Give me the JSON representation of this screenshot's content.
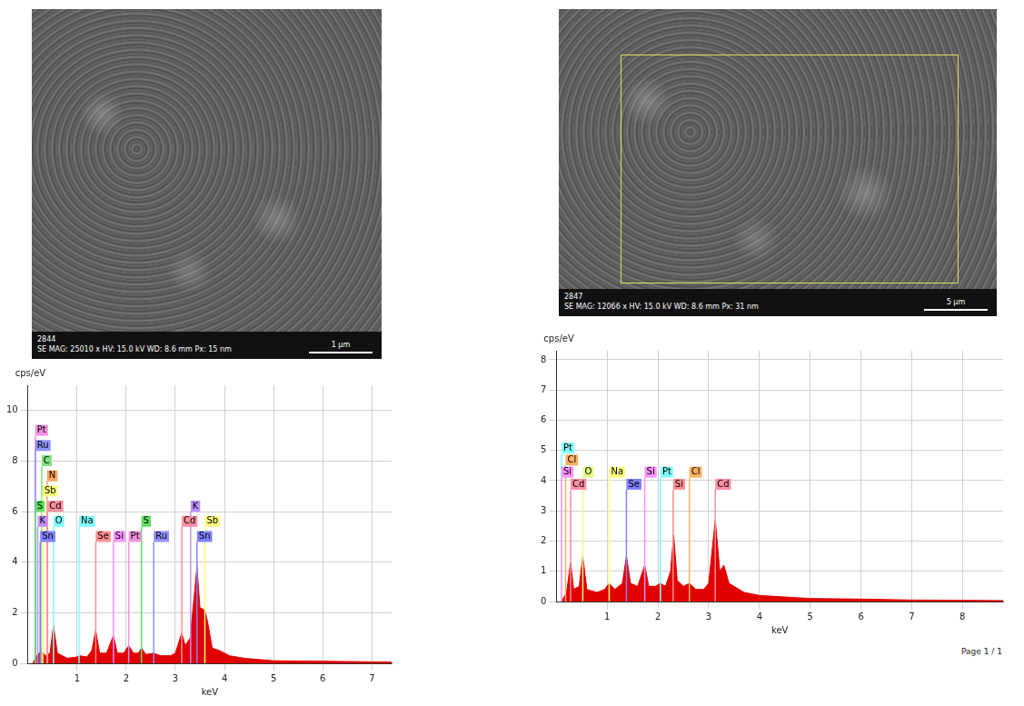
{
  "images": [
    {
      "code": "2844",
      "info": "SE MAG: 25010 x HV: 15.0 kV WD: 8.6 mm Px: 15 nm",
      "scale": "1 µm"
    },
    {
      "code": "2847",
      "info": "SE MAG: 12066 x HV: 15.0 kV WD: 8.6 mm Px: 31 nm",
      "scale": "5 µm"
    }
  ],
  "chart_data": [
    {
      "type": "area",
      "color": "#e00000",
      "ylabel": "cps/eV",
      "xlabel": "keV",
      "grid": true,
      "xlim": [
        0,
        7.4
      ],
      "xticks": [
        1,
        2,
        3,
        4,
        5,
        6,
        7
      ],
      "ylim": [
        0,
        11
      ],
      "yticks": [
        0,
        2,
        4,
        6,
        8,
        10
      ],
      "x": [
        0.1,
        0.18,
        0.28,
        0.35,
        0.45,
        0.52,
        0.6,
        0.8,
        1.0,
        1.05,
        1.2,
        1.3,
        1.38,
        1.46,
        1.6,
        1.74,
        1.82,
        1.95,
        2.05,
        2.15,
        2.25,
        2.31,
        2.4,
        2.56,
        2.7,
        2.9,
        3.0,
        3.13,
        3.2,
        3.3,
        3.4,
        3.44,
        3.5,
        3.6,
        3.66,
        3.75,
        3.9,
        4.1,
        4.4,
        5.0,
        6.0,
        7.4
      ],
      "values": [
        0,
        0.3,
        0.5,
        0.3,
        0.4,
        1.5,
        0.4,
        0.2,
        0.25,
        0.3,
        0.25,
        0.5,
        1.3,
        0.4,
        0.4,
        1.1,
        0.4,
        0.4,
        0.7,
        0.4,
        0.4,
        0.6,
        0.35,
        0.4,
        0.3,
        0.3,
        0.4,
        1.2,
        0.7,
        1.0,
        3.0,
        3.8,
        2.2,
        2.1,
        1.6,
        0.6,
        0.5,
        0.3,
        0.2,
        0.1,
        0.08,
        0.05
      ],
      "element_lines": [
        {
          "label": "Pt",
          "x": 0.15,
          "y": 9.0,
          "color": "#f090e0"
        },
        {
          "label": "Ru",
          "x": 0.15,
          "y": 8.4,
          "color": "#9090ff"
        },
        {
          "label": "C",
          "x": 0.28,
          "y": 7.8,
          "color": "#80e080"
        },
        {
          "label": "N",
          "x": 0.39,
          "y": 7.2,
          "color": "#ffa060"
        },
        {
          "label": "Sb",
          "x": 0.3,
          "y": 6.6,
          "color": "#ffff80"
        },
        {
          "label": "S",
          "x": 0.15,
          "y": 6.0,
          "color": "#60e060"
        },
        {
          "label": "Cd",
          "x": 0.4,
          "y": 6.0,
          "color": "#ff8fa0"
        },
        {
          "label": "K",
          "x": 0.2,
          "y": 5.4,
          "color": "#c090ff"
        },
        {
          "label": "O",
          "x": 0.52,
          "y": 5.4,
          "color": "#80ffff"
        },
        {
          "label": "Sn",
          "x": 0.25,
          "y": 4.8,
          "color": "#8080ff"
        },
        {
          "label": "Na",
          "x": 1.04,
          "y": 5.4,
          "color": "#80ffff"
        },
        {
          "label": "Se",
          "x": 1.38,
          "y": 4.8,
          "color": "#ff8f8f"
        },
        {
          "label": "Si",
          "x": 1.74,
          "y": 4.8,
          "color": "#ff90ff"
        },
        {
          "label": "Pt",
          "x": 2.05,
          "y": 4.8,
          "color": "#f090e0"
        },
        {
          "label": "S",
          "x": 2.31,
          "y": 5.4,
          "color": "#60e060"
        },
        {
          "label": "Ru",
          "x": 2.56,
          "y": 4.8,
          "color": "#9090ff"
        },
        {
          "label": "K",
          "x": 3.31,
          "y": 6.0,
          "color": "#c090ff"
        },
        {
          "label": "Cd",
          "x": 3.13,
          "y": 5.4,
          "color": "#ff8fa0"
        },
        {
          "label": "Sb",
          "x": 3.6,
          "y": 5.4,
          "color": "#ffff80"
        },
        {
          "label": "Sn",
          "x": 3.44,
          "y": 4.8,
          "color": "#8080ff"
        }
      ]
    },
    {
      "type": "area",
      "color": "#e00000",
      "ylabel": "cps/eV",
      "xlabel": "keV",
      "grid": true,
      "xlim": [
        0,
        8.8
      ],
      "xticks": [
        1,
        2,
        3,
        4,
        5,
        6,
        7,
        8
      ],
      "ylim": [
        0,
        8.3
      ],
      "yticks": [
        0,
        1,
        2,
        3,
        4,
        5,
        6,
        7,
        8
      ],
      "x": [
        0.1,
        0.2,
        0.28,
        0.34,
        0.45,
        0.52,
        0.6,
        0.8,
        0.95,
        1.04,
        1.15,
        1.3,
        1.38,
        1.46,
        1.6,
        1.74,
        1.82,
        1.95,
        2.05,
        2.15,
        2.25,
        2.31,
        2.38,
        2.5,
        2.62,
        2.75,
        2.9,
        3.0,
        3.13,
        3.22,
        3.3,
        3.4,
        3.5,
        3.7,
        4.0,
        4.5,
        5.0,
        6.0,
        7.0,
        8.8
      ],
      "values": [
        0,
        0.3,
        1.3,
        0.4,
        0.5,
        1.5,
        0.4,
        0.3,
        0.4,
        0.6,
        0.4,
        0.6,
        1.5,
        0.6,
        0.5,
        1.2,
        0.5,
        0.5,
        0.6,
        0.5,
        1.0,
        2.2,
        0.7,
        0.5,
        0.6,
        0.4,
        0.4,
        0.6,
        2.7,
        1.0,
        1.2,
        0.6,
        0.5,
        0.3,
        0.2,
        0.15,
        0.1,
        0.08,
        0.05,
        0.03
      ],
      "element_lines": [
        {
          "label": "Pt",
          "x": 0.1,
          "y": 4.9,
          "color": "#80ffff"
        },
        {
          "label": "Cl",
          "x": 0.18,
          "y": 4.5,
          "color": "#ffb060"
        },
        {
          "label": "Si",
          "x": 0.1,
          "y": 4.1,
          "color": "#ff90ff"
        },
        {
          "label": "Cd",
          "x": 0.28,
          "y": 3.7,
          "color": "#ff8fa0"
        },
        {
          "label": "O",
          "x": 0.52,
          "y": 4.1,
          "color": "#e0ff80"
        },
        {
          "label": "Na",
          "x": 1.04,
          "y": 4.1,
          "color": "#ffff80"
        },
        {
          "label": "Se",
          "x": 1.38,
          "y": 3.7,
          "color": "#8080ff"
        },
        {
          "label": "Si",
          "x": 1.74,
          "y": 4.1,
          "color": "#ff90ff"
        },
        {
          "label": "Pt",
          "x": 2.05,
          "y": 4.1,
          "color": "#80ffff"
        },
        {
          "label": "Si",
          "x": 2.3,
          "y": 3.7,
          "color": "#ff8f8f"
        },
        {
          "label": "Cl",
          "x": 2.62,
          "y": 4.1,
          "color": "#ffb060"
        },
        {
          "label": "Cd",
          "x": 3.13,
          "y": 3.7,
          "color": "#ff8fa0"
        }
      ]
    }
  ],
  "footer": "Page 1 / 1"
}
